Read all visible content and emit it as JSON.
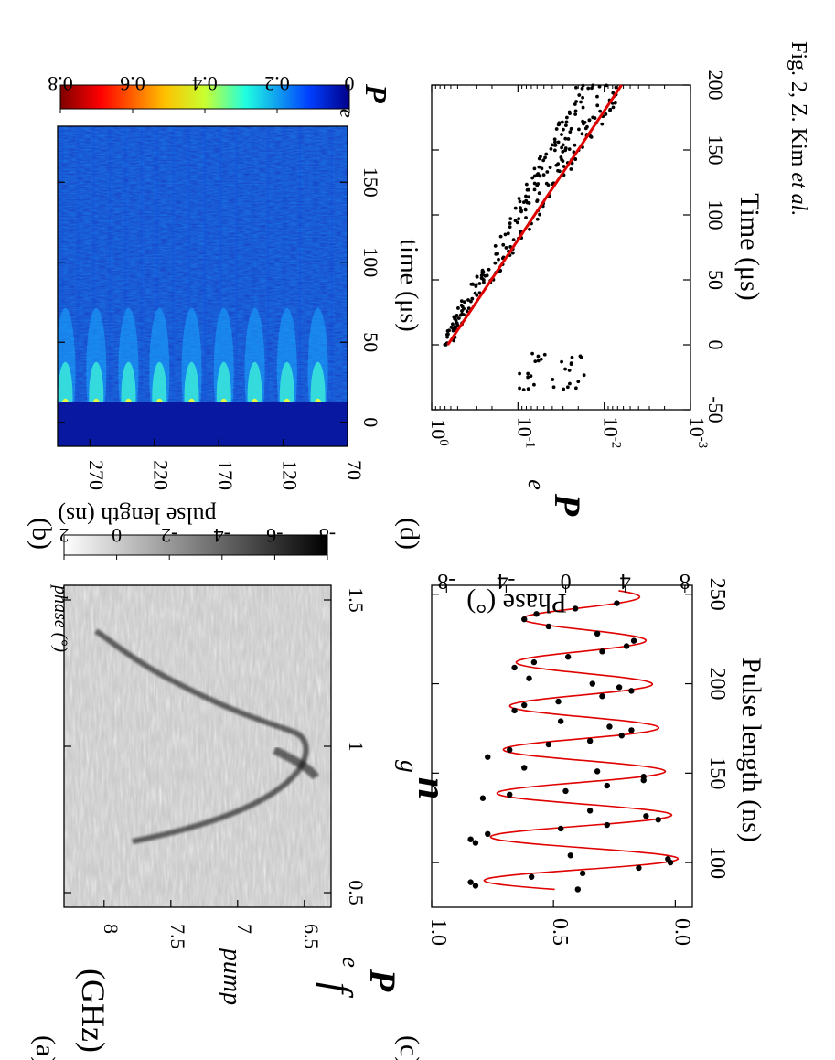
{
  "caption": "Fig. 2, Z. Kim et al.",
  "caption_author_prefix": "Fig. 2, Z. Kim ",
  "caption_author_suffix": "et al.",
  "panels": {
    "a": {
      "label": "(a)",
      "ylabel_sym": "f",
      "ylabel_sub": "pump",
      "ylabel_unit": "(GHz)",
      "colorbar_label": "phase (°)"
    },
    "b": {
      "label": "(b)",
      "ylabel": "pulse length (ns)",
      "xlabel": "time (μs)",
      "colorbar_sym": "P",
      "colorbar_sub": "e"
    },
    "c": {
      "label": "(c)",
      "xlabel": "Pulse length (ns)",
      "ylabel_sym": "P",
      "ylabel_sub": "e",
      "y2label": "Phase (°)",
      "annot_sym": "n",
      "annot_sub": "g"
    },
    "d": {
      "label": "(d)",
      "xlabel": "Time (μs)",
      "ylabel_sym": "P",
      "ylabel_sub": "e"
    }
  },
  "chart_data": [
    {
      "type": "heatmap",
      "panel": "a",
      "x_axis": {
        "name": "phase",
        "ticks": [
          "0.5",
          "1",
          "1.5"
        ],
        "range": [
          0.45,
          1.55
        ]
      },
      "y_axis": {
        "ticks": [
          "6.5",
          "7",
          "7.5",
          "8"
        ],
        "range": [
          6.3,
          8.3
        ]
      },
      "colorbar": {
        "ticks": [
          "-8",
          "-6",
          "-4",
          "-2",
          "0",
          "2"
        ],
        "range": [
          -8,
          2
        ],
        "colormap": "gray"
      },
      "feature": "parabolic dark arc with vertex near phase 1.0, f 6.4 GHz, arms reaching about 7.7 GHz"
    },
    {
      "type": "heatmap",
      "panel": "b",
      "x_axis": {
        "ticks": [
          "0",
          "50",
          "100",
          "150"
        ],
        "range": [
          -15,
          185
        ]
      },
      "y_axis": {
        "ticks": [
          "70",
          "120",
          "170",
          "220",
          "270"
        ],
        "range": [
          70,
          295
        ]
      },
      "colorbar": {
        "ticks": [
          "0",
          "0.2",
          "0.4",
          "0.6",
          "0.8"
        ],
        "range": [
          0,
          0.8
        ],
        "colormap": "jet"
      },
      "bright_pulse_lengths": [
        93,
        117,
        142,
        166,
        191,
        216,
        240,
        265,
        289
      ]
    },
    {
      "type": "scatter",
      "panel": "c",
      "x_axis": {
        "ticks": [
          "100",
          "150",
          "200",
          "250"
        ],
        "range": [
          75,
          255
        ]
      },
      "y_axis": {
        "ticks": [
          "0.0",
          "0.5",
          "1.0"
        ],
        "range": [
          -0.07,
          1.0
        ]
      },
      "y2_axis": {
        "ticks": [
          "-8",
          "-4",
          "0",
          "4",
          "8"
        ],
        "range": [
          -9,
          8.5
        ]
      },
      "fit_period_ns": 24.4,
      "fit_first_max_ns": 90,
      "fit_amplitude_start": 0.41,
      "fit_amplitude_end": 0.23,
      "fit_offset": 0.38,
      "points": [
        [
          85,
          0.4
        ],
        [
          87,
          0.82
        ],
        [
          89,
          0.84
        ],
        [
          92,
          0.59
        ],
        [
          94,
          0.38
        ],
        [
          97,
          0.15
        ],
        [
          100,
          0.02
        ],
        [
          102,
          0.03
        ],
        [
          104,
          0.43
        ],
        [
          111,
          0.82
        ],
        [
          113,
          0.84
        ],
        [
          116,
          0.77
        ],
        [
          119,
          0.47
        ],
        [
          121,
          0.28
        ],
        [
          124,
          0.07
        ],
        [
          126,
          0.12
        ],
        [
          129,
          0.35
        ],
        [
          136,
          0.79
        ],
        [
          138,
          0.68
        ],
        [
          140,
          0.45
        ],
        [
          143,
          0.28
        ],
        [
          146,
          0.13
        ],
        [
          148,
          0.13
        ],
        [
          151,
          0.32
        ],
        [
          153,
          0.62
        ],
        [
          159,
          0.77
        ],
        [
          163,
          0.68
        ],
        [
          166,
          0.52
        ],
        [
          168,
          0.35
        ],
        [
          171,
          0.22
        ],
        [
          174,
          0.18
        ],
        [
          176,
          0.27
        ],
        [
          179,
          0.47
        ],
        [
          185,
          0.66
        ],
        [
          188,
          0.62
        ],
        [
          190,
          0.48
        ],
        [
          193,
          0.3
        ],
        [
          196,
          0.18
        ],
        [
          198,
          0.23
        ],
        [
          200,
          0.34
        ],
        [
          203,
          0.6
        ],
        [
          209,
          0.66
        ],
        [
          212,
          0.58
        ],
        [
          215,
          0.44
        ],
        [
          218,
          0.3
        ],
        [
          221,
          0.2
        ],
        [
          224,
          0.17
        ],
        [
          228,
          0.32
        ],
        [
          232,
          0.52
        ],
        [
          236,
          0.62
        ],
        [
          239,
          0.57
        ],
        [
          242,
          0.41
        ],
        [
          245,
          0.24
        ]
      ]
    },
    {
      "type": "scatter",
      "panel": "d",
      "x_axis": {
        "ticks": [
          "-50",
          "0",
          "50",
          "100",
          "150",
          "200"
        ],
        "range": [
          -50,
          200
        ]
      },
      "y_axis": {
        "ticks": [
          "10^-3",
          "10^-2",
          "10^-1",
          "10^0"
        ],
        "range": [
          0.001,
          1
        ],
        "scale": "log"
      },
      "fit_line": {
        "x": [
          0,
          200
        ],
        "y": [
          0.65,
          0.0063
        ]
      }
    }
  ]
}
